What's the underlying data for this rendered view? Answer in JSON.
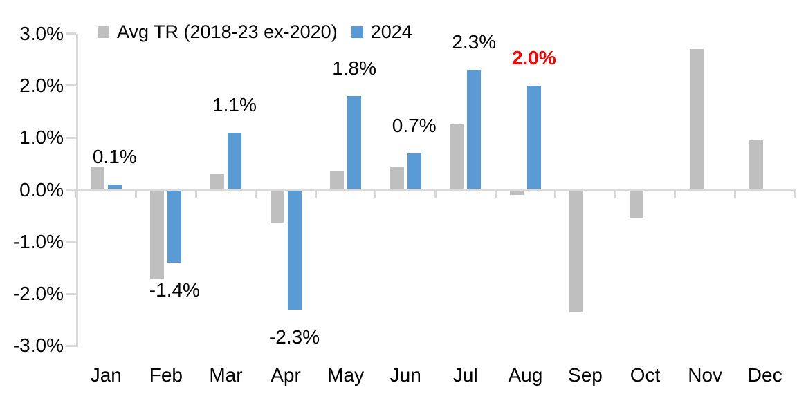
{
  "chart_data": {
    "type": "bar",
    "title": "",
    "categories": [
      "Jan",
      "Feb",
      "Mar",
      "Apr",
      "May",
      "Jun",
      "Jul",
      "Aug",
      "Sep",
      "Oct",
      "Nov",
      "Dec"
    ],
    "series": [
      {
        "name": "Avg TR (2018-23 ex-2020)",
        "color": "#bfbfbf",
        "values": [
          0.45,
          -1.7,
          0.3,
          -0.65,
          0.35,
          0.45,
          1.25,
          -0.1,
          -2.35,
          -0.55,
          2.7,
          0.95
        ]
      },
      {
        "name": "2024",
        "color": "#5b9bd5",
        "values": [
          0.1,
          -1.4,
          1.1,
          -2.3,
          1.8,
          0.7,
          2.3,
          2.0,
          null,
          null,
          null,
          null
        ],
        "point_labels": [
          {
            "text": "0.1%",
            "color": "#000000",
            "bold": false
          },
          {
            "text": "-1.4%",
            "color": "#000000",
            "bold": false
          },
          {
            "text": "1.1%",
            "color": "#000000",
            "bold": false
          },
          {
            "text": "-2.3%",
            "color": "#000000",
            "bold": false
          },
          {
            "text": "1.8%",
            "color": "#000000",
            "bold": false
          },
          {
            "text": "0.7%",
            "color": "#000000",
            "bold": false
          },
          {
            "text": "2.3%",
            "color": "#000000",
            "bold": false
          },
          {
            "text": "2.0%",
            "color": "#ff0000",
            "bold": true
          },
          null,
          null,
          null,
          null
        ]
      }
    ],
    "y_axis": {
      "ticks": [
        {
          "label": "3.0%",
          "value": 3
        },
        {
          "label": "2.0%",
          "value": 2
        },
        {
          "label": "1.0%",
          "value": 1
        },
        {
          "label": "0.0%",
          "value": 0
        },
        {
          "label": "-1.0%",
          "value": -1
        },
        {
          "label": "-2.0%",
          "value": -2
        },
        {
          "label": "-3.0%",
          "value": -3
        }
      ],
      "ylim": [
        -3.0,
        3.0
      ]
    },
    "grid": false,
    "legend_position": "top",
    "axis_color": "#d9d9d9",
    "text_color": "#000000"
  }
}
